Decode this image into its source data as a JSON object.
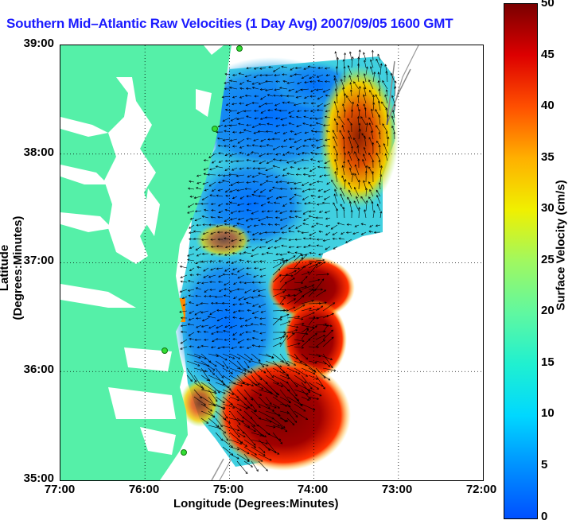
{
  "title": "Southern Mid–Atlantic Raw Velocities (1 Day Avg) 2007/09/05 1600 GMT",
  "axes": {
    "xlabel": "Longitude (Degrees:Minutes)",
    "ylabel": "Latitude (Degrees:Minutes)",
    "xticks": [
      "77:00",
      "76:00",
      "75:00",
      "74:00",
      "73:00",
      "72:00"
    ],
    "yticks": [
      "39:00",
      "38:00",
      "37:00",
      "36:00",
      "35:00"
    ],
    "xlim": [
      -77,
      -72
    ],
    "ylim": [
      35,
      39
    ],
    "grid": true
  },
  "colorbar": {
    "label": "Surface Velocity (cm/s)",
    "ticks": [
      "50",
      "45",
      "40",
      "35",
      "30",
      "25",
      "20",
      "15",
      "10",
      "5",
      "0"
    ],
    "range": [
      0,
      50
    ],
    "colors": [
      "#0050ff",
      "#00d8ff",
      "#60f8a0",
      "#f0f000",
      "#ff5000",
      "#7a0000"
    ]
  },
  "colors": {
    "land": "#55f0a8",
    "ocean": "#ffffff",
    "title": "#1a1aff"
  },
  "chart_data": {
    "type": "heatmap",
    "title": "Southern Mid–Atlantic Raw Velocities (1 Day Avg) 2007/09/05 1600 GMT",
    "xlabel": "Longitude (Degrees:Minutes)",
    "ylabel": "Latitude (Degrees:Minutes)",
    "value_label": "Surface Velocity (cm/s)",
    "value_range": [
      0,
      50
    ],
    "regions": [
      {
        "lon": -74.4,
        "lat": 38.6,
        "speed": 5
      },
      {
        "lon": -73.3,
        "lat": 38.3,
        "speed": 38
      },
      {
        "lon": -74.0,
        "lat": 37.6,
        "speed": 15
      },
      {
        "lon": -74.9,
        "lat": 37.3,
        "speed": 25
      },
      {
        "lon": -74.1,
        "lat": 36.9,
        "speed": 48
      },
      {
        "lon": -74.0,
        "lat": 36.3,
        "speed": 48
      },
      {
        "lon": -74.5,
        "lat": 35.4,
        "speed": 48
      },
      {
        "lon": -75.0,
        "lat": 36.2,
        "speed": 8
      },
      {
        "lon": -75.4,
        "lat": 36.8,
        "speed": 10
      }
    ]
  }
}
